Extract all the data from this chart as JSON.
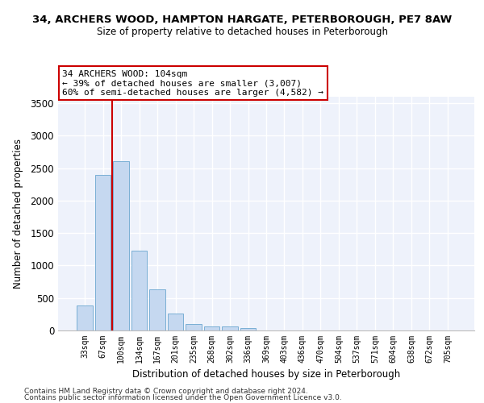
{
  "title1": "34, ARCHERS WOOD, HAMPTON HARGATE, PETERBOROUGH, PE7 8AW",
  "title2": "Size of property relative to detached houses in Peterborough",
  "xlabel": "Distribution of detached houses by size in Peterborough",
  "ylabel": "Number of detached properties",
  "categories": [
    "33sqm",
    "67sqm",
    "100sqm",
    "134sqm",
    "167sqm",
    "201sqm",
    "235sqm",
    "268sqm",
    "302sqm",
    "336sqm",
    "369sqm",
    "403sqm",
    "436sqm",
    "470sqm",
    "504sqm",
    "537sqm",
    "571sqm",
    "604sqm",
    "638sqm",
    "672sqm",
    "705sqm"
  ],
  "values": [
    390,
    2400,
    2610,
    1230,
    635,
    255,
    95,
    65,
    58,
    42,
    0,
    0,
    0,
    0,
    0,
    0,
    0,
    0,
    0,
    0,
    0
  ],
  "bar_color": "#c5d8f0",
  "bar_edge_color": "#7aafd4",
  "highlight_line_color": "#cc0000",
  "annotation_line1": "34 ARCHERS WOOD: 104sqm",
  "annotation_line2": "← 39% of detached houses are smaller (3,007)",
  "annotation_line3": "60% of semi-detached houses are larger (4,582) →",
  "annotation_box_color": "#ffffff",
  "annotation_box_edge_color": "#cc0000",
  "ylim": [
    0,
    3600
  ],
  "yticks": [
    0,
    500,
    1000,
    1500,
    2000,
    2500,
    3000,
    3500
  ],
  "plot_bg_color": "#eef2fb",
  "grid_color": "#ffffff",
  "footer1": "Contains HM Land Registry data © Crown copyright and database right 2024.",
  "footer2": "Contains public sector information licensed under the Open Government Licence v3.0."
}
